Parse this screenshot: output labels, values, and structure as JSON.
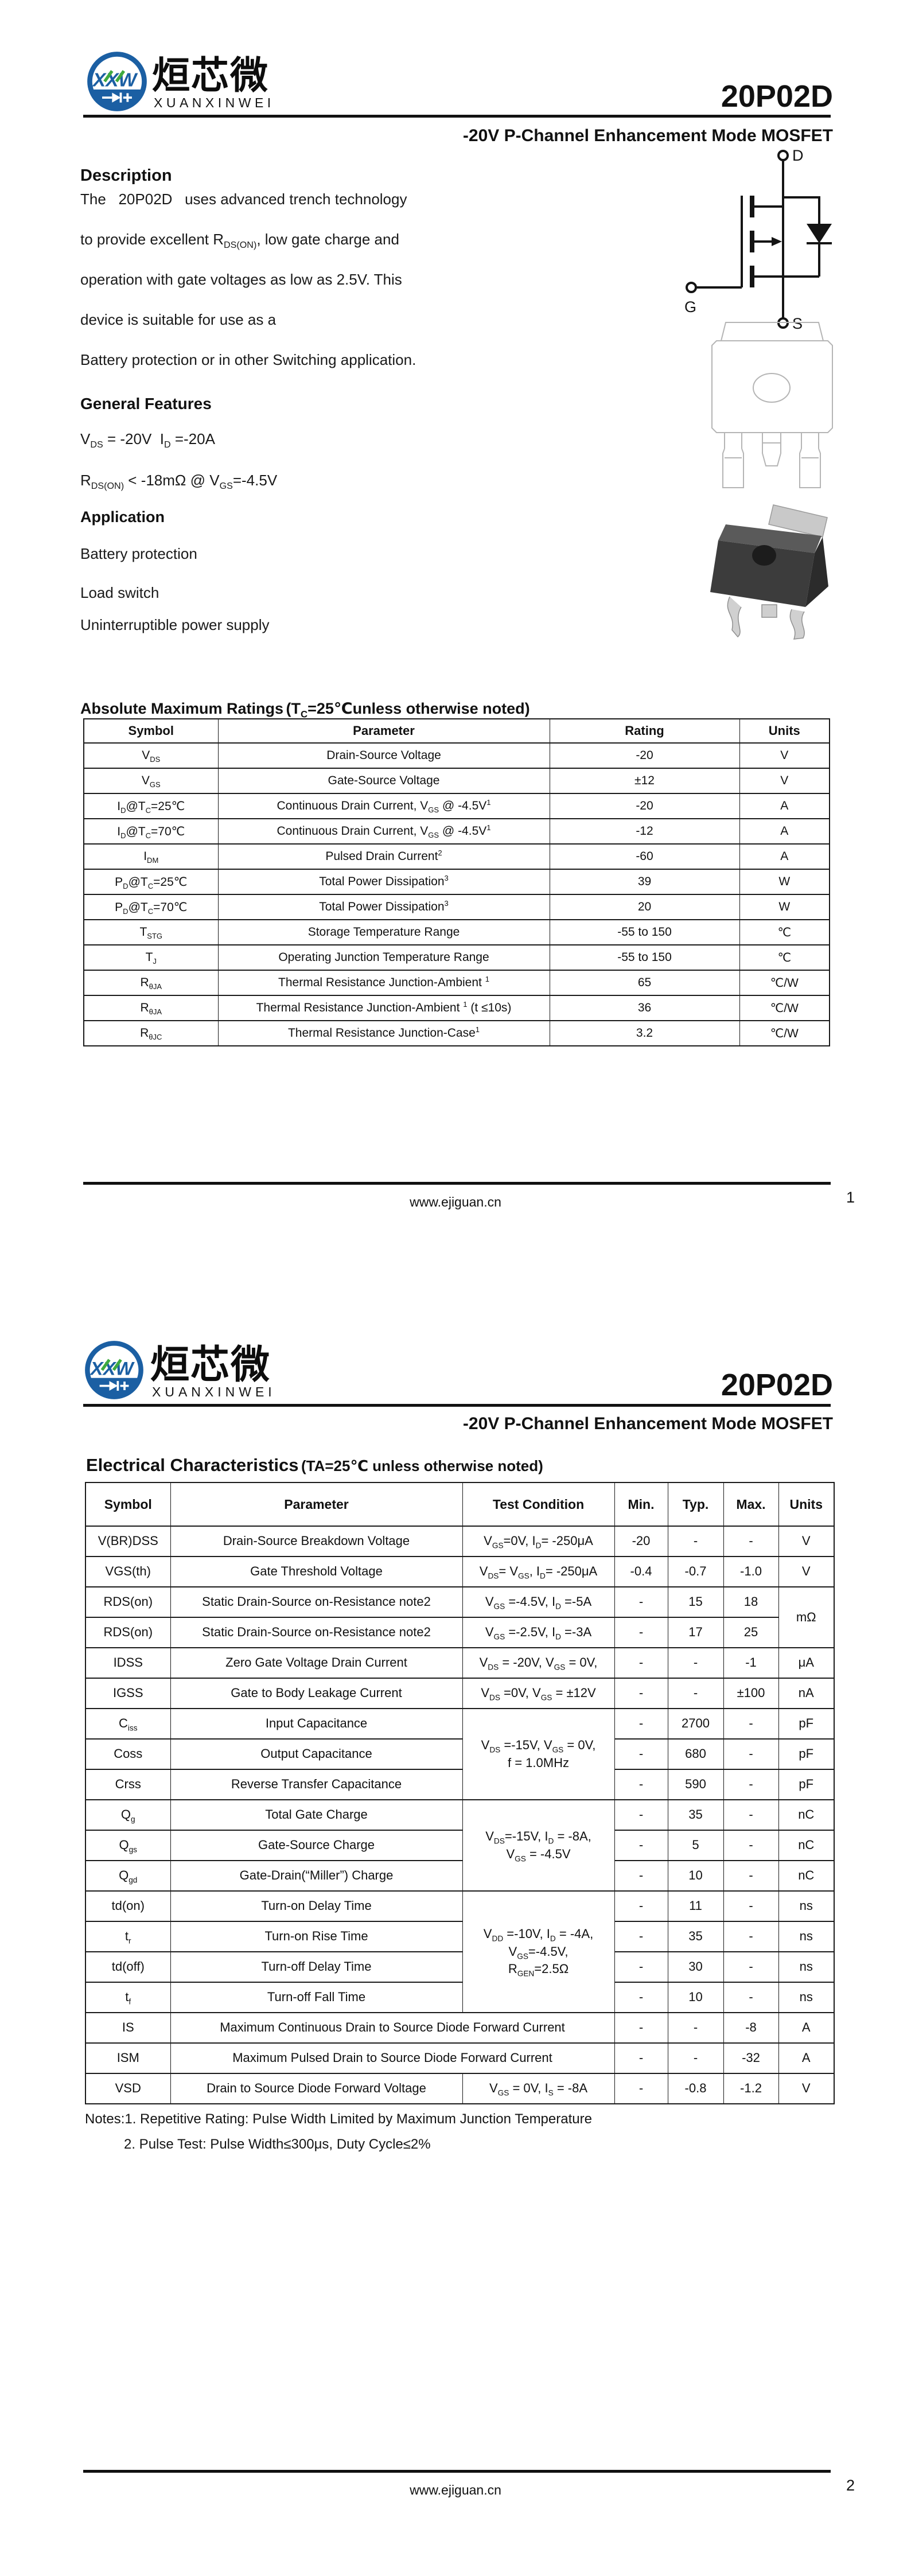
{
  "brand": {
    "cn": "烜芯微",
    "en": "XUANXINWEI",
    "monogram": "XXW"
  },
  "part_number": "20P02D",
  "subtitle": "-20V P-Channel Enhancement Mode MOSFET",
  "page1": {
    "description": {
      "heading": "Description",
      "lines": [
        "The   20P02D   uses advanced trench technology",
        "to provide excellent R~DS(ON)~, low gate charge and",
        "operation with gate voltages as low as 2.5V. This",
        "device is suitable for use as a",
        "Battery protection or in other Switching application."
      ]
    },
    "features": {
      "heading": "General Features",
      "lines": [
        "V~DS~ = -20V  I~D~ =-20A",
        "R~DS(ON)~ < -18mΩ @ V~GS~=-4.5V"
      ]
    },
    "application": {
      "heading": "Application",
      "items": [
        "Battery protection",
        "Load switch",
        "Uninterruptible power supply"
      ]
    },
    "symbol_labels": {
      "d": "D",
      "g": "G",
      "s": "S"
    },
    "amr": {
      "heading_main": "Absolute Maximum Ratings",
      "heading_paren": "(T~C~=25℃unless otherwise noted)",
      "headers": [
        "Symbol",
        "Parameter",
        "Rating",
        "Units"
      ],
      "rows": [
        [
          "V~DS~",
          "Drain-Source Voltage",
          "-20",
          "V"
        ],
        [
          "V~GS~",
          "Gate-Source Voltage",
          "±12",
          "V"
        ],
        [
          "I~D~@T~C~=25℃",
          "Continuous Drain Current, V~GS~ @ -4.5V^1^",
          "-20",
          "A"
        ],
        [
          "I~D~@T~C~=70℃",
          "Continuous Drain Current, V~GS~ @ -4.5V^1^",
          "-12",
          "A"
        ],
        [
          "I~DM~",
          "Pulsed Drain Current^2^",
          "-60",
          "A"
        ],
        [
          "P~D~@T~C~=25℃",
          "Total Power Dissipation^3^",
          "39",
          "W"
        ],
        [
          "P~D~@T~C~=70℃",
          "Total Power Dissipation^3^",
          "20",
          "W"
        ],
        [
          "T~STG~",
          "Storage Temperature Range",
          "-55 to 150",
          "℃"
        ],
        [
          "T~J~",
          "Operating Junction Temperature Range",
          "-55 to 150",
          "℃"
        ],
        [
          "R~θJA~",
          "Thermal Resistance Junction-Ambient ^1^",
          "65",
          "℃/W"
        ],
        [
          "R~θJA~",
          "Thermal Resistance Junction-Ambient ^1^ (t ≤10s)",
          "36",
          "℃/W"
        ],
        [
          "R~θJC~",
          "Thermal Resistance Junction-Case^1^",
          "3.2",
          "℃/W"
        ]
      ]
    },
    "footer": {
      "url": "www.ejiguan.cn",
      "page": "1"
    }
  },
  "page2": {
    "ec": {
      "heading_main": "Electrical Characteristics",
      "heading_paren": "(TA=25℃ unless otherwise noted)",
      "headers": [
        "Symbol",
        "Parameter",
        "Test Condition",
        "Min.",
        "Typ.",
        "Max.",
        "Units"
      ],
      "rows": [
        [
          "V(BR)DSS",
          "Drain-Source Breakdown Voltage",
          "V~GS~=0V, I~D~= -250μA",
          "-20",
          "-",
          "-",
          "V"
        ],
        [
          "VGS(th)",
          "Gate Threshold Voltage",
          "V~DS~= V~GS~, I~D~= -250μA",
          "-0.4",
          "-0.7",
          "-1.0",
          "V"
        ],
        [
          "RDS(on)",
          "Static Drain-Source on-Resistance note2",
          "V~GS~ =-4.5V, I~D~ =-5A",
          "-",
          "15",
          "18",
          {
            "t": "mΩ",
            "r": 2
          }
        ],
        [
          "RDS(on)",
          "Static Drain-Source on-Resistance note2",
          "V~GS~ =-2.5V, I~D~ =-3A",
          "-",
          "17",
          "25"
        ],
        [
          "IDSS",
          "Zero Gate Voltage Drain Current",
          "V~DS~ = -20V, V~GS~ = 0V,",
          "-",
          "-",
          "-1",
          "μA"
        ],
        [
          "IGSS",
          "Gate to Body Leakage Current",
          "V~DS~ =0V, V~GS~ = ±12V",
          "-",
          "-",
          "±100",
          "nA"
        ],
        [
          "C~iss~",
          "Input Capacitance",
          {
            "t": "V~DS~ =-15V, V~GS~ = 0V,\nf = 1.0MHz",
            "r": 3
          },
          "-",
          "2700",
          "-",
          "pF"
        ],
        [
          "Coss",
          "Output Capacitance",
          "-",
          "680",
          "-",
          "pF"
        ],
        [
          "Crss",
          "Reverse Transfer Capacitance",
          "-",
          "590",
          "-",
          "pF"
        ],
        [
          "Q~g~",
          "Total Gate Charge",
          {
            "t": "V~DS~=-15V, I~D~ = -8A,\nV~GS~ = -4.5V",
            "r": 3
          },
          "-",
          "35",
          "-",
          "nC"
        ],
        [
          "Q~gs~",
          "Gate-Source Charge",
          "-",
          "5",
          "-",
          "nC"
        ],
        [
          "Q~gd~",
          "Gate-Drain(“Miller”) Charge",
          "-",
          "10",
          "-",
          "nC"
        ],
        [
          "td(on)",
          "Turn-on Delay Time",
          {
            "t": "V~DD~ =-10V, I~D~ = -4A,\nV~GS~=-4.5V,\nR~GEN~=2.5Ω",
            "r": 4
          },
          "-",
          "11",
          "-",
          "ns"
        ],
        [
          "t~r~",
          "Turn-on Rise Time",
          "-",
          "35",
          "-",
          "ns"
        ],
        [
          "td(off)",
          "Turn-off Delay Time",
          "-",
          "30",
          "-",
          "ns"
        ],
        [
          "t~f~",
          "Turn-off Fall Time",
          "-",
          "10",
          "-",
          "ns"
        ],
        [
          "IS",
          {
            "t": "Maximum Continuous Drain to Source Diode Forward Current",
            "c": 2
          },
          "-",
          "-",
          "-8",
          "A"
        ],
        [
          "ISM",
          {
            "t": "Maximum Pulsed Drain to Source Diode Forward Current",
            "c": 2
          },
          "-",
          "-",
          "-32",
          "A"
        ],
        [
          "VSD",
          "Drain to Source Diode Forward Voltage",
          "V~GS~ = 0V, I~S~ = -8A",
          "-",
          "-0.8",
          "-1.2",
          "V"
        ]
      ]
    },
    "notes": [
      "Notes:1. Repetitive Rating: Pulse Width Limited by Maximum Junction Temperature",
      "2. Pulse Test: Pulse Width≤300μs, Duty Cycle≤2%"
    ],
    "footer": {
      "url": "www.ejiguan.cn",
      "page": "2"
    }
  },
  "colors": {
    "brand_blue": "#1b5fa3",
    "brand_green": "#3faa3f",
    "ink": "#111111"
  }
}
